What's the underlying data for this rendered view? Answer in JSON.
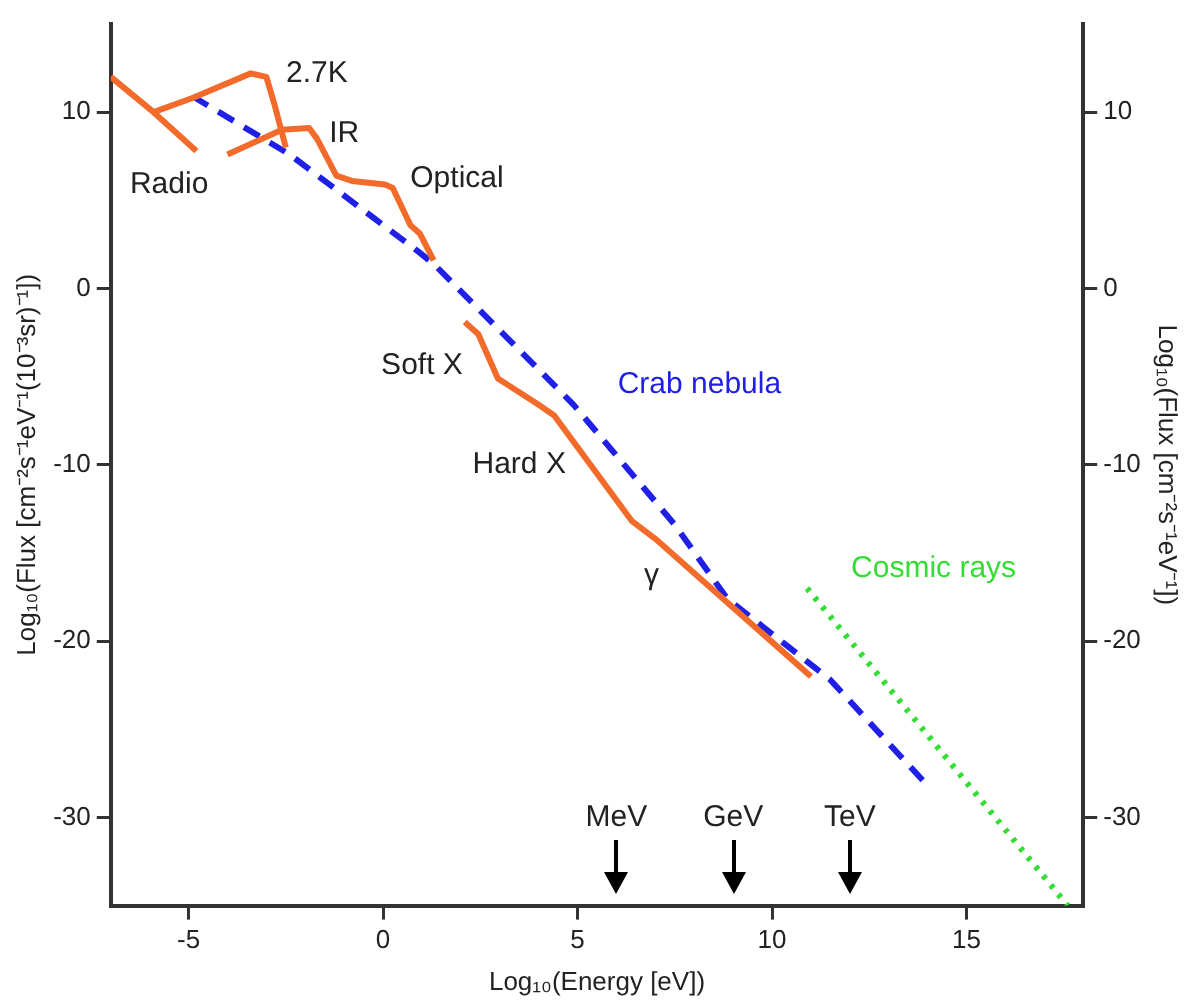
{
  "chart_data": {
    "type": "line",
    "xlabel": "Log₁₀(Energy [eV])",
    "ylabel": "Log₁₀(Flux [cm⁻²s⁻¹eV⁻¹(10⁻³sr)⁻¹])",
    "y2label": "Log₁₀(Flux [cm⁻²s⁻¹eV⁻¹])",
    "xlim": [
      -7,
      18
    ],
    "xticks": [
      -5,
      0,
      5,
      10,
      15
    ],
    "ylim": [
      -35,
      15
    ],
    "yticks": [
      -30,
      -20,
      -10,
      0,
      10
    ],
    "y2lim": [
      -35,
      15
    ],
    "y2ticks": [
      -30,
      -20,
      -10,
      0,
      10
    ],
    "grid": false,
    "legend": false,
    "marker": "none",
    "series": [
      {
        "color": "#f26b2a",
        "line_style": "solid",
        "x": [
          -7,
          -5.9,
          -4.8
        ],
        "values": [
          12,
          10,
          7.8
        ]
      },
      {
        "color": "#f26b2a",
        "line_style": "solid",
        "x": [
          -5.9,
          -4.9,
          -3.4,
          -3.0,
          -2.8,
          -2.5
        ],
        "values": [
          10,
          10.8,
          12.2,
          12,
          10.5,
          8.0
        ]
      },
      {
        "color": "#f26b2a",
        "line_style": "solid",
        "x": [
          -4.0,
          -2.6,
          -1.9,
          -1.7,
          -1.2,
          -0.8,
          0.05,
          0.25,
          0.7,
          0.95,
          1.3
        ],
        "values": [
          7.6,
          9.0,
          9.1,
          8.5,
          6.4,
          6.1,
          5.9,
          5.7,
          3.6,
          3.1,
          1.6
        ]
      },
      {
        "color": "#f26b2a",
        "line_style": "solid",
        "x": [
          2.1,
          2.45,
          2.95,
          4.0,
          4.4,
          6.4,
          7.0,
          11
        ],
        "values": [
          -1.9,
          -2.6,
          -5.1,
          -6.6,
          -7.2,
          -13.2,
          -14.2,
          -22
        ]
      },
      {
        "name": "Crab nebula",
        "color": "#1f1fe6",
        "line_style": "dashed",
        "x": [
          -4.9,
          -2.4,
          0.9,
          1.3,
          4.9,
          7.5,
          8.85,
          10.35,
          11.5,
          14.0
        ],
        "values": [
          10.9,
          7.6,
          2.1,
          1.4,
          -6.6,
          -13.4,
          -17.6,
          -20.2,
          -22.2,
          -28.2
        ]
      },
      {
        "name": "Cosmic rays",
        "color": "#33dd33",
        "line_style": "dotted",
        "x": [
          10.9,
          17.6
        ],
        "values": [
          -17,
          -35
        ]
      }
    ],
    "annotations": [
      "Radio",
      "2.7K",
      "IR",
      "Optical",
      "Soft X",
      "Hard X",
      "γ",
      "MeV",
      "GeV",
      "TeV"
    ]
  }
}
